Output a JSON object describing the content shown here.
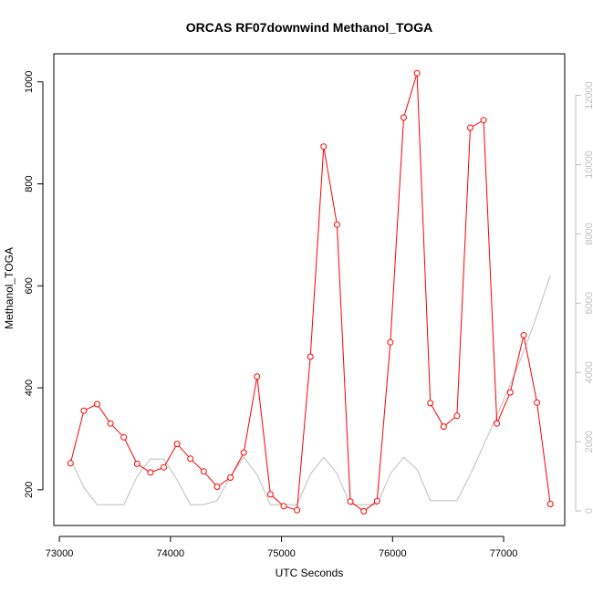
{
  "chart_data": {
    "type": "line",
    "title": "ORCAS RF07downwind Methanol_TOGA",
    "xlabel": "UTC Seconds",
    "ylabel": "Methanol_TOGA",
    "xlim": [
      72950,
      77550
    ],
    "ylim": [
      130,
      1055
    ],
    "y2lim": [
      -420,
      13200
    ],
    "x_ticks": [
      "73000",
      "74000",
      "75000",
      "76000",
      "77000"
    ],
    "y_ticks": [
      "200",
      "400",
      "600",
      "800",
      "1000"
    ],
    "y2_ticks": [
      "0",
      "2000",
      "4000",
      "6000",
      "8000",
      "10000",
      "12000"
    ],
    "grid": false,
    "colors": {
      "primary": "#ff0000",
      "secondary": "#bebebe",
      "axis": "#000000",
      "secondary_axis": "#bebebe"
    },
    "series": [
      {
        "axis": "left",
        "style": "line+points",
        "color": "#ff0000",
        "x": [
          73100,
          73220,
          73340,
          73460,
          73580,
          73700,
          73820,
          73940,
          74060,
          74180,
          74300,
          74420,
          74540,
          74660,
          74780,
          74900,
          75020,
          75140,
          75260,
          75380,
          75500,
          75620,
          75740,
          75860,
          75980,
          76100,
          76220,
          76340,
          76460,
          76580,
          76700,
          76820,
          76940,
          77060,
          77180,
          77300,
          77420
        ],
        "y": [
          252,
          355,
          368,
          330,
          303,
          251,
          234,
          244,
          290,
          261,
          236,
          206,
          224,
          273,
          422,
          191,
          168,
          160,
          461,
          873,
          720,
          177,
          158,
          178,
          489,
          930,
          1017,
          370,
          324,
          345,
          910,
          925,
          330,
          391,
          503,
          371,
          172
        ]
      },
      {
        "axis": "right",
        "style": "line",
        "color": "#bebebe",
        "x": [
          73100,
          73220,
          73340,
          73460,
          73580,
          73700,
          73820,
          73940,
          74060,
          74180,
          74300,
          74420,
          74540,
          74660,
          74780,
          74900,
          75020,
          75140,
          75260,
          75380,
          75500,
          75620,
          75740,
          75860,
          75980,
          76100,
          76220,
          76340,
          76460,
          76580,
          76700,
          76820,
          76940,
          77060,
          77180,
          77300,
          77420
        ],
        "y": [
          1500,
          680,
          180,
          180,
          180,
          1000,
          1500,
          1500,
          900,
          180,
          180,
          300,
          1000,
          1550,
          1050,
          180,
          180,
          180,
          1060,
          1550,
          1080,
          180,
          180,
          180,
          1080,
          1550,
          1200,
          300,
          300,
          300,
          1050,
          1900,
          2750,
          3650,
          4600,
          5650,
          6800
        ]
      }
    ]
  }
}
